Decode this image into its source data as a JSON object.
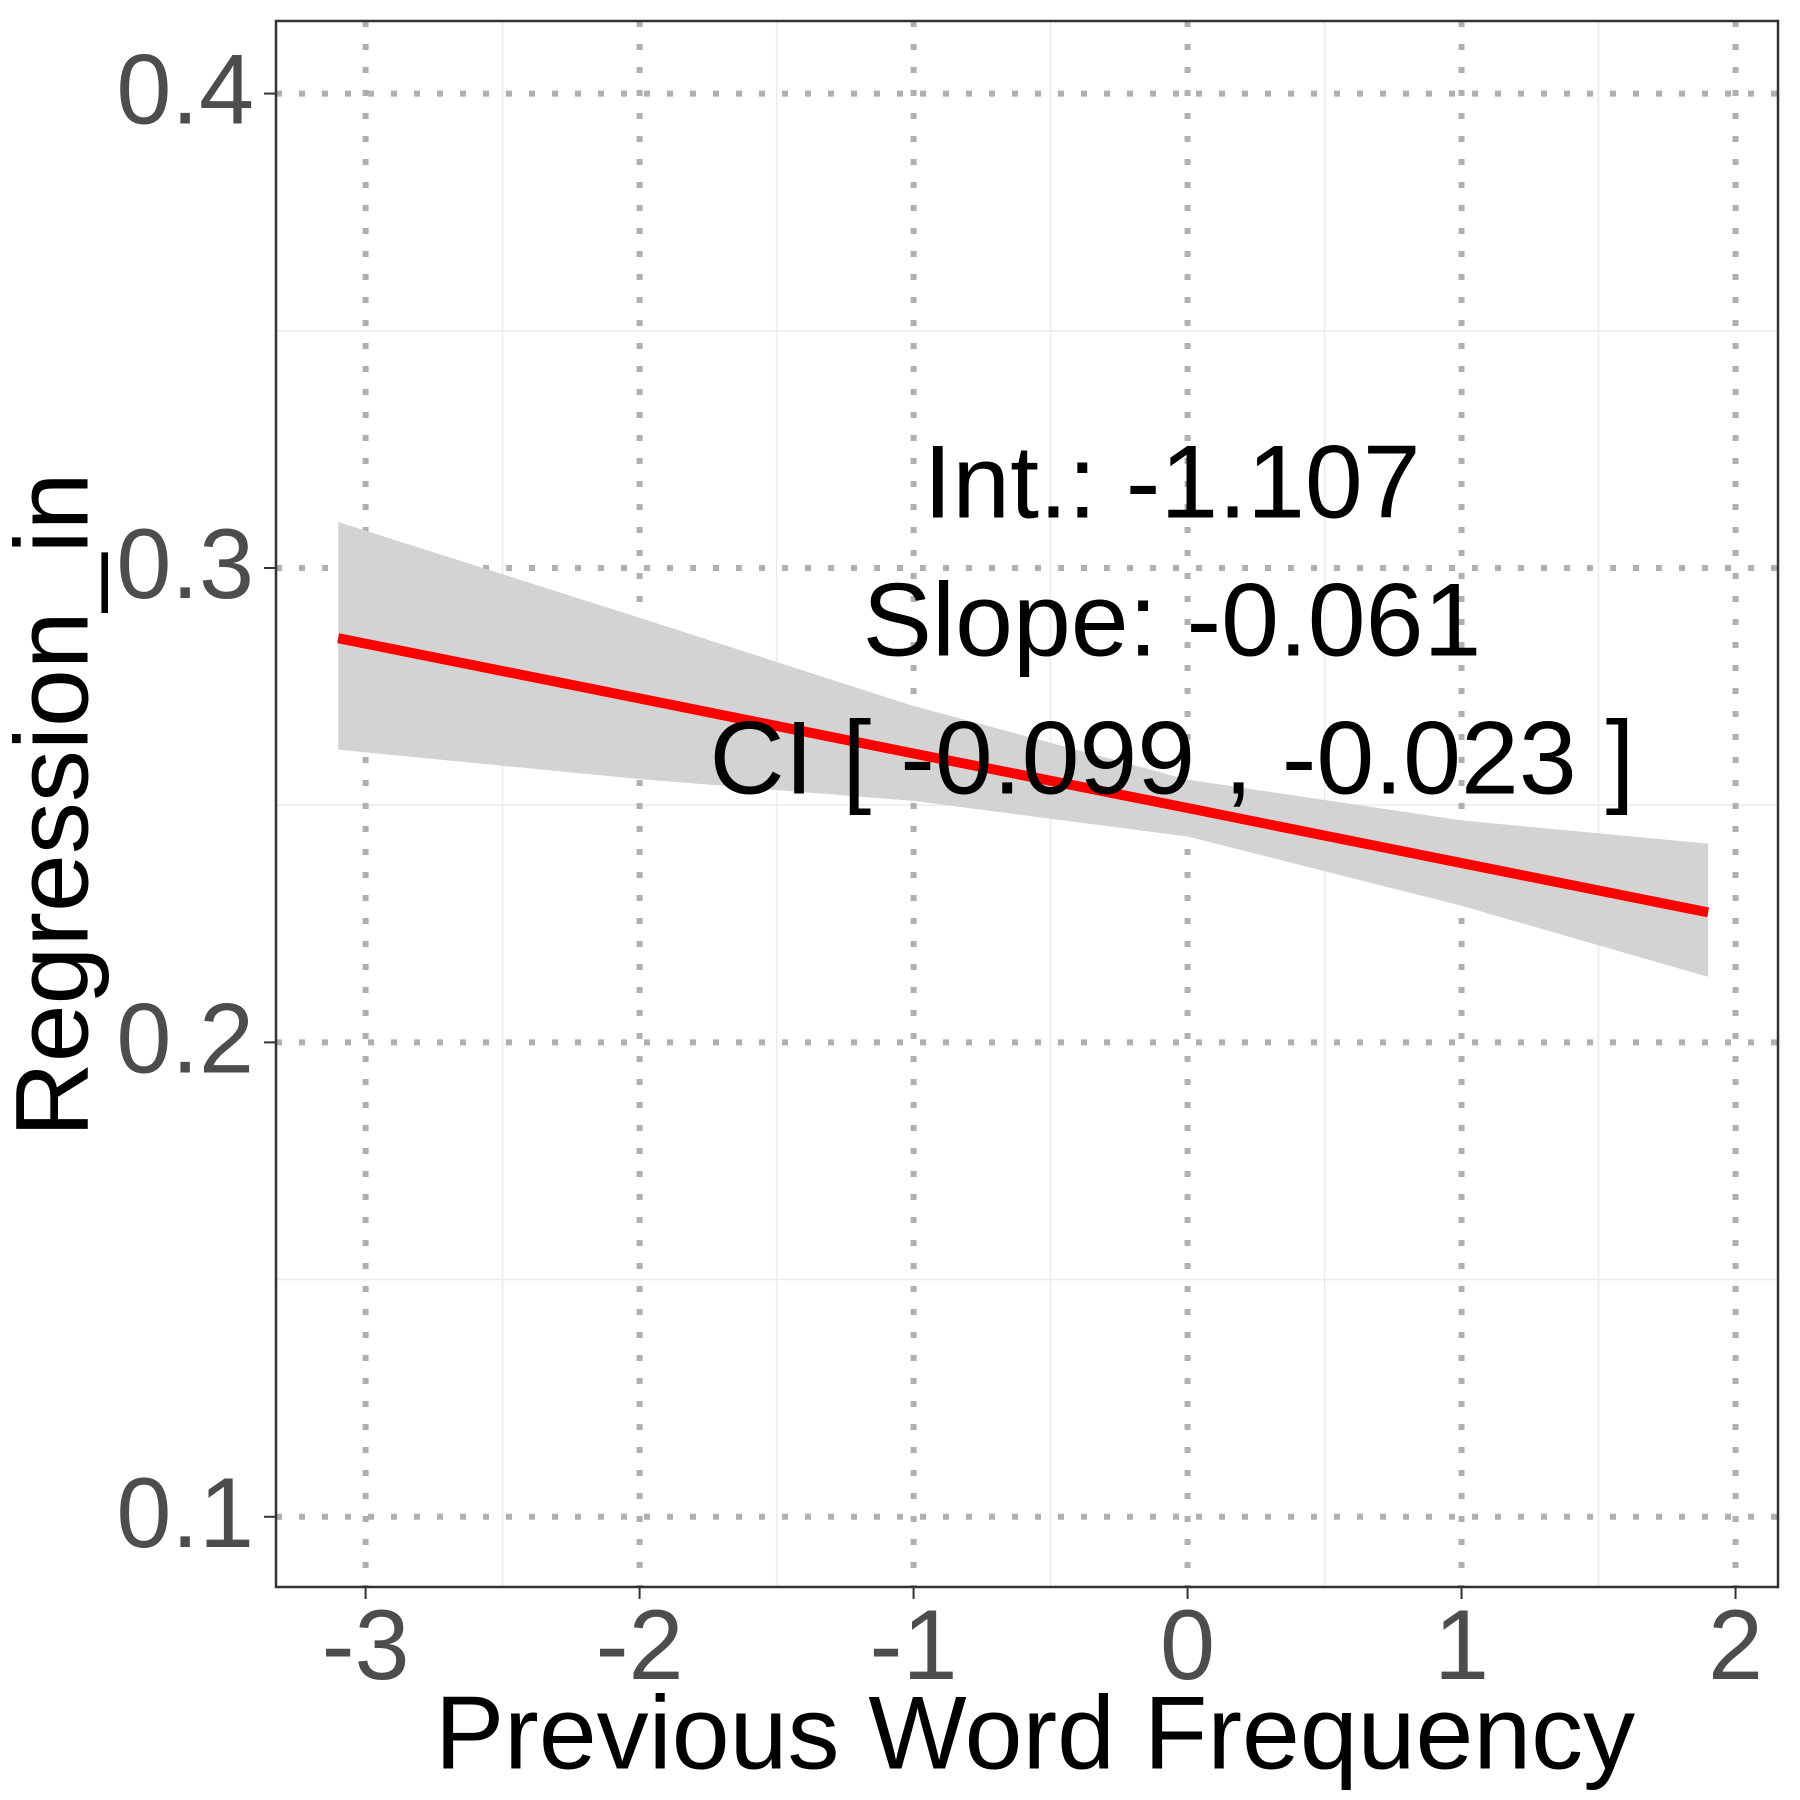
{
  "chart_data": {
    "type": "line",
    "x_label": "Previous Word Frequency",
    "y_label": "Regression_in",
    "annotations": [
      "Int.: -1.107",
      "Slope: -0.061",
      "CI [ -0.099 , -0.023 ]"
    ],
    "x": [
      -3.1,
      -2,
      -1,
      0,
      1,
      1.9
    ],
    "values": [
      0.2852,
      0.2725,
      0.2609,
      0.2494,
      0.2378,
      0.2274
    ],
    "lower": [
      0.2617,
      0.2555,
      0.2509,
      0.2434,
      0.2288,
      0.2138
    ],
    "upper": [
      0.3097,
      0.2895,
      0.2709,
      0.2554,
      0.2468,
      0.2419
    ],
    "color": "#ff0000",
    "band_color": "#d3d3d3",
    "xlim": [
      -3.327,
      2.155
    ],
    "ylim": [
      0.0852,
      0.4153
    ],
    "xticks": [
      -3,
      -2,
      -1,
      0,
      1,
      2
    ],
    "yticks": [
      0.1,
      0.2,
      0.3,
      0.4
    ],
    "x_minor_ticks": [
      -2.5,
      -1.5,
      -0.5,
      0.5,
      1.5
    ],
    "y_minor_ticks": [
      0.15,
      0.25,
      0.35
    ],
    "grid": true
  }
}
